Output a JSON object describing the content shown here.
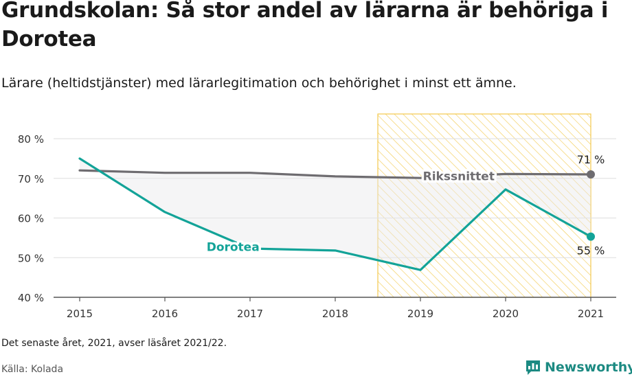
{
  "title": "Grundskolan: Så stor andel av lärarna är behöriga i Dorotea",
  "subtitle": "Lärare (heltidstjänster) med lärarlegitimation och behörighet i minst ett ämne.",
  "footnote": "Det senaste året, 2021, avser läsåret 2021/22.",
  "source": "Källa: Kolada",
  "brand": {
    "name": "Newsworthy",
    "icon": "bar-chart-speech-icon",
    "color": "#1c8a82"
  },
  "chart_data": {
    "type": "line",
    "categories": [
      "2015",
      "2016",
      "2017",
      "2018",
      "2019",
      "2020",
      "2021"
    ],
    "ylim": [
      40,
      80
    ],
    "yticks": [
      40,
      50,
      60,
      70,
      80
    ],
    "ytick_labels": [
      "40 %",
      "50 %",
      "60 %",
      "70 %",
      "80 %"
    ],
    "grid": true,
    "highlight": {
      "from": "2019",
      "to": "2021",
      "color": "#f2c94c"
    },
    "series": [
      {
        "name": "Rikssnittet",
        "values": [
          72.0,
          71.4,
          71.4,
          70.5,
          70.1,
          71.1,
          71.0
        ],
        "color": "#6e6c70",
        "end_label": "71 %"
      },
      {
        "name": "Dorotea",
        "values": [
          75.0,
          61.5,
          52.3,
          51.8,
          46.9,
          67.2,
          55.3
        ],
        "color": "#13a398",
        "end_label": "55 %"
      }
    ]
  }
}
